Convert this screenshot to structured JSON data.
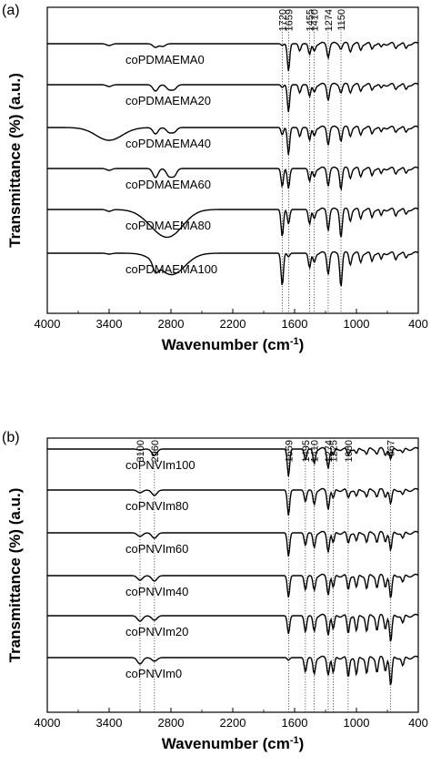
{
  "chart_data": [
    {
      "type": "line",
      "panel_label": "(a)",
      "xlabel": "Wavenumber (cm",
      "xlabel_sup": "-1",
      "xlabel_end": ")",
      "ylabel": "Transmittance (%) (a.u.)",
      "xlim": [
        4000,
        400
      ],
      "xticks": [
        4000,
        3400,
        2800,
        2200,
        1600,
        1000,
        400
      ],
      "peak_lines": [
        1720,
        1659,
        1455,
        1410,
        1274,
        1150
      ],
      "series": [
        {
          "name": "coPDMAEMA0",
          "features": [
            [
              3400,
              2
            ],
            [
              2950,
              4
            ],
            [
              2880,
              3
            ],
            [
              1720,
              2
            ],
            [
              1659,
              30
            ],
            [
              1550,
              8
            ],
            [
              1455,
              12
            ],
            [
              1410,
              8
            ],
            [
              1274,
              14
            ],
            [
              1150,
              5
            ],
            [
              1060,
              8
            ],
            [
              960,
              7
            ],
            [
              850,
              6
            ],
            [
              760,
              5
            ],
            [
              620,
              5
            ],
            [
              520,
              6
            ]
          ]
        },
        {
          "name": "coPDMAEMA20",
          "features": [
            [
              3400,
              2
            ],
            [
              2950,
              7
            ],
            [
              2820,
              5
            ],
            [
              2770,
              5
            ],
            [
              1720,
              3
            ],
            [
              1659,
              30
            ],
            [
              1550,
              9
            ],
            [
              1455,
              13
            ],
            [
              1410,
              8
            ],
            [
              1274,
              16
            ],
            [
              1150,
              8
            ],
            [
              1060,
              8
            ],
            [
              960,
              7
            ],
            [
              850,
              6
            ],
            [
              760,
              5
            ],
            [
              620,
              5
            ],
            [
              520,
              6
            ]
          ]
        },
        {
          "name": "coPDMAEMA40",
          "features": [
            [
              3400,
              14
            ],
            [
              2950,
              7
            ],
            [
              2820,
              5
            ],
            [
              2770,
              5
            ],
            [
              1720,
              8
            ],
            [
              1659,
              30
            ],
            [
              1550,
              10
            ],
            [
              1455,
              14
            ],
            [
              1410,
              9
            ],
            [
              1274,
              18
            ],
            [
              1150,
              14
            ],
            [
              1060,
              9
            ],
            [
              960,
              8
            ],
            [
              850,
              7
            ],
            [
              760,
              6
            ],
            [
              620,
              5
            ],
            [
              520,
              6
            ]
          ]
        },
        {
          "name": "coPDMAEMA60",
          "features": [
            [
              3400,
              2
            ],
            [
              2950,
              10
            ],
            [
              2820,
              8
            ],
            [
              2770,
              8
            ],
            [
              1720,
              20
            ],
            [
              1659,
              22
            ],
            [
              1455,
              14
            ],
            [
              1410,
              9
            ],
            [
              1274,
              18
            ],
            [
              1150,
              22
            ],
            [
              1060,
              10
            ],
            [
              960,
              9
            ],
            [
              850,
              8
            ],
            [
              760,
              7
            ],
            [
              620,
              6
            ],
            [
              520,
              6
            ]
          ]
        },
        {
          "name": "coPDMAEMA80",
          "features": [
            [
              3400,
              2
            ],
            [
              2950,
              12
            ],
            [
              2820,
              12
            ],
            [
              2770,
              12
            ],
            [
              1720,
              30
            ],
            [
              1659,
              16
            ],
            [
              1455,
              16
            ],
            [
              1410,
              10
            ],
            [
              1274,
              22
            ],
            [
              1150,
              30
            ],
            [
              1060,
              12
            ],
            [
              960,
              10
            ],
            [
              850,
              9
            ],
            [
              760,
              8
            ],
            [
              620,
              7
            ],
            [
              520,
              6
            ]
          ]
        },
        {
          "name": "coPDMAEMA100",
          "features": [
            [
              3400,
              1
            ],
            [
              2950,
              10
            ],
            [
              2820,
              12
            ],
            [
              2770,
              12
            ],
            [
              1720,
              36
            ],
            [
              1659,
              4
            ],
            [
              1455,
              16
            ],
            [
              1410,
              10
            ],
            [
              1274,
              22
            ],
            [
              1150,
              36
            ],
            [
              1060,
              12
            ],
            [
              960,
              10
            ],
            [
              850,
              9
            ],
            [
              760,
              8
            ],
            [
              620,
              7
            ],
            [
              520,
              6
            ]
          ]
        }
      ]
    },
    {
      "type": "line",
      "panel_label": "(b)",
      "xlabel": "Wavenumber (cm",
      "xlabel_sup": "-1",
      "xlabel_end": ")",
      "ylabel": "Transmittance (%) (a.u.)",
      "xlim": [
        4000,
        400
      ],
      "xticks": [
        4000,
        3400,
        2800,
        2200,
        1600,
        1000,
        400
      ],
      "peak_lines": [
        3100,
        2960,
        1659,
        1495,
        1410,
        1274,
        1225,
        1080,
        667
      ],
      "series": [
        {
          "name": "coPNVIm100",
          "features": [
            [
              3100,
              1
            ],
            [
              2960,
              7
            ],
            [
              1659,
              30
            ],
            [
              1495,
              12
            ],
            [
              1410,
              16
            ],
            [
              1274,
              20
            ],
            [
              1225,
              8
            ],
            [
              1080,
              7
            ],
            [
              1000,
              6
            ],
            [
              900,
              6
            ],
            [
              800,
              5
            ],
            [
              720,
              6
            ],
            [
              667,
              12
            ],
            [
              550,
              5
            ]
          ]
        },
        {
          "name": "coPNVIm80",
          "features": [
            [
              3100,
              3
            ],
            [
              2960,
              6
            ],
            [
              1659,
              28
            ],
            [
              1495,
              13
            ],
            [
              1410,
              16
            ],
            [
              1274,
              20
            ],
            [
              1225,
              10
            ],
            [
              1080,
              9
            ],
            [
              1000,
              8
            ],
            [
              900,
              8
            ],
            [
              800,
              7
            ],
            [
              720,
              7
            ],
            [
              667,
              16
            ],
            [
              550,
              6
            ]
          ]
        },
        {
          "name": "coPNVIm60",
          "features": [
            [
              3100,
              4
            ],
            [
              2960,
              6
            ],
            [
              1659,
              26
            ],
            [
              1495,
              14
            ],
            [
              1410,
              16
            ],
            [
              1274,
              20
            ],
            [
              1225,
              12
            ],
            [
              1080,
              12
            ],
            [
              1000,
              10
            ],
            [
              900,
              11
            ],
            [
              800,
              10
            ],
            [
              720,
              9
            ],
            [
              667,
              20
            ],
            [
              550,
              7
            ]
          ]
        },
        {
          "name": "coPNVIm40",
          "features": [
            [
              3100,
              5
            ],
            [
              2960,
              6
            ],
            [
              1659,
              24
            ],
            [
              1495,
              16
            ],
            [
              1410,
              16
            ],
            [
              1274,
              20
            ],
            [
              1225,
              14
            ],
            [
              1080,
              16
            ],
            [
              1000,
              14
            ],
            [
              900,
              15
            ],
            [
              800,
              13
            ],
            [
              720,
              12
            ],
            [
              667,
              26
            ],
            [
              550,
              8
            ]
          ]
        },
        {
          "name": "coPNVIm20",
          "features": [
            [
              3100,
              6
            ],
            [
              2960,
              5
            ],
            [
              1659,
              20
            ],
            [
              1495,
              18
            ],
            [
              1410,
              17
            ],
            [
              1274,
              20
            ],
            [
              1225,
              16
            ],
            [
              1080,
              20
            ],
            [
              1000,
              18
            ],
            [
              900,
              18
            ],
            [
              800,
              16
            ],
            [
              720,
              14
            ],
            [
              667,
              30
            ],
            [
              550,
              9
            ]
          ]
        },
        {
          "name": "coPNVIm0",
          "features": [
            [
              3100,
              7
            ],
            [
              2960,
              4
            ],
            [
              1659,
              3
            ],
            [
              1495,
              16
            ],
            [
              1410,
              18
            ],
            [
              1274,
              18
            ],
            [
              1225,
              18
            ],
            [
              1080,
              22
            ],
            [
              1000,
              20
            ],
            [
              900,
              18
            ],
            [
              800,
              16
            ],
            [
              720,
              14
            ],
            [
              667,
              32
            ],
            [
              550,
              10
            ]
          ]
        }
      ]
    }
  ]
}
